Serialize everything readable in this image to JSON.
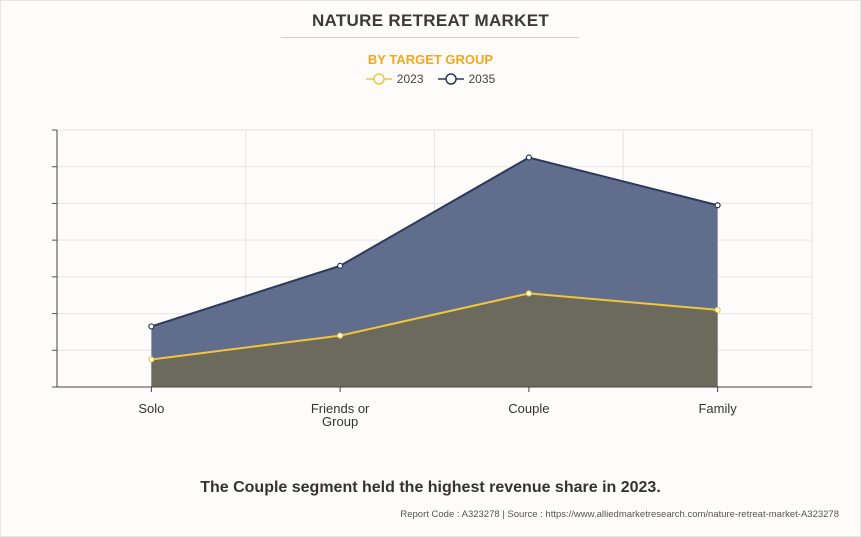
{
  "header": {
    "title": "NATURE RETREAT MARKET",
    "subtitle": "BY TARGET GROUP"
  },
  "colors": {
    "subtitle": "#f3a81c",
    "series_2023_line": "#f2c53d",
    "series_2023_fill": "#6b6a5c",
    "series_2035_line": "#2b3a5c",
    "series_2035_fill": "#606d8c"
  },
  "chart_data": {
    "type": "area",
    "categories": [
      "Solo",
      "Friends or Group",
      "Couple",
      "Family"
    ],
    "category_lines": [
      [
        "Solo"
      ],
      [
        "Friends or",
        "Group"
      ],
      [
        "Couple"
      ],
      [
        "Family"
      ]
    ],
    "series": [
      {
        "name": "2023",
        "values": [
          0.75,
          1.4,
          2.55,
          2.1
        ]
      },
      {
        "name": "2035",
        "values": [
          1.65,
          3.3,
          6.25,
          4.95
        ]
      }
    ],
    "ylim": [
      0,
      7
    ],
    "y_ticks": 7,
    "y_tick_labels_visible": false,
    "grid": true,
    "legend_position": "top-center"
  },
  "footer": {
    "caption": "The Couple segment held the highest revenue share in 2023.",
    "source": "Report Code : A323278  |  Source : https://www.alliedmarketresearch.com/nature-retreat-market-A323278"
  }
}
